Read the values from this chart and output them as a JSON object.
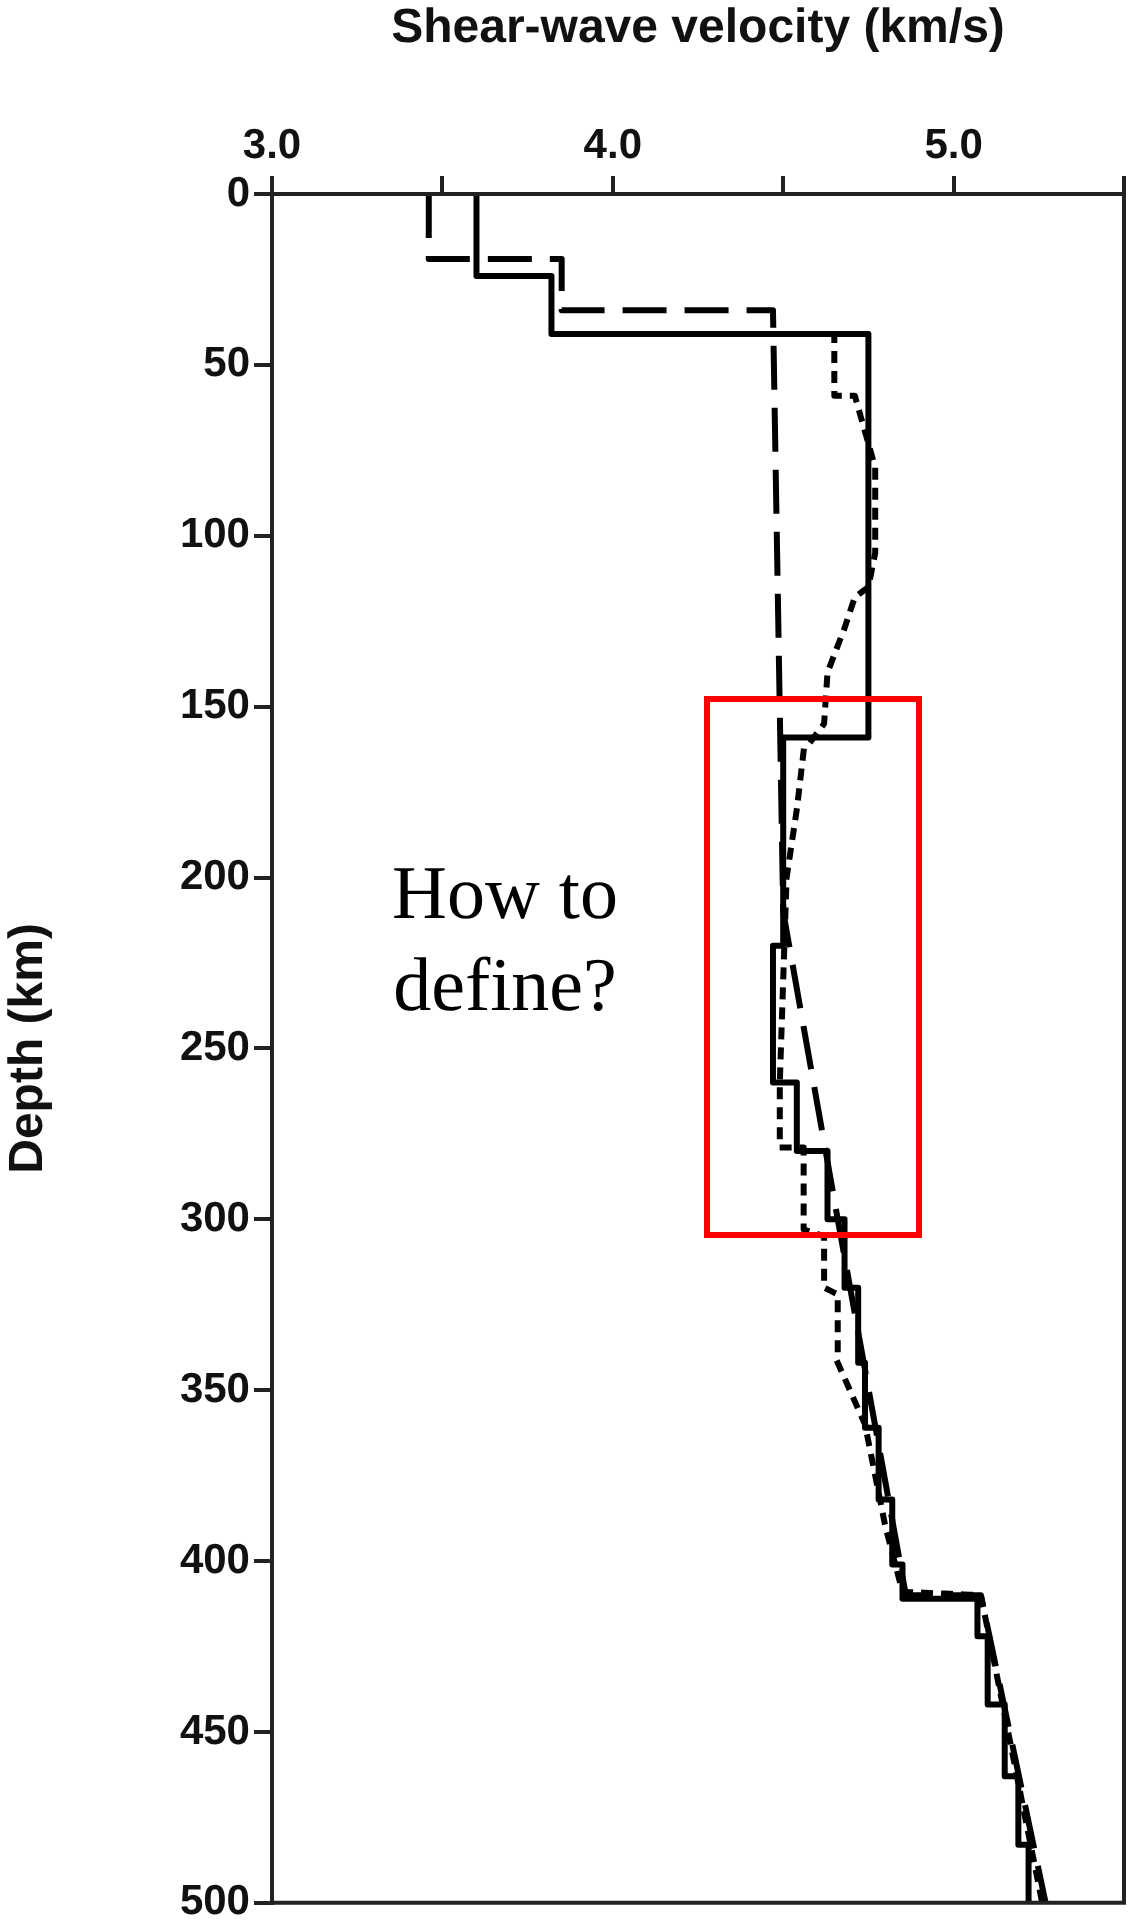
{
  "chart_data": {
    "type": "line",
    "xlabel": "Shear-wave velocity (km/s)",
    "ylabel": "Depth (km)",
    "xlim": [
      3.0,
      5.5
    ],
    "xticks": [
      {
        "value": 3,
        "label": "3.0"
      },
      {
        "value": 3.5,
        "label": null
      },
      {
        "value": 4,
        "label": "4.0"
      },
      {
        "value": 4.5,
        "label": null
      },
      {
        "value": 5,
        "label": "5.0"
      },
      {
        "value": 5.5,
        "label": null
      }
    ],
    "ylim": [
      500,
      0
    ],
    "yticks": [
      0,
      50,
      100,
      150,
      200,
      250,
      300,
      350,
      400,
      450,
      500
    ],
    "marker": "none",
    "series": [
      {
        "color": "#000000",
        "line_style": "solid",
        "x": [
          3.6,
          3.6,
          3.82,
          3.82,
          4.75,
          4.75,
          4.5,
          4.5,
          4.47,
          4.47,
          4.54,
          4.54,
          4.63,
          4.63,
          4.68,
          4.68,
          4.72,
          4.72,
          4.74,
          4.74,
          4.78,
          4.78,
          4.82,
          4.82,
          4.85,
          4.85,
          5.07,
          5.07,
          5.1,
          5.1,
          5.15,
          5.15,
          5.19,
          5.19,
          5.22,
          5.22
        ],
        "values": [
          0,
          24,
          24,
          41,
          41,
          159,
          159,
          220,
          220,
          260,
          260,
          280,
          280,
          300,
          300,
          320,
          320,
          342,
          342,
          361,
          361,
          382,
          382,
          401,
          401,
          411,
          411,
          422,
          422,
          442,
          442,
          463,
          463,
          483,
          483,
          500
        ]
      },
      {
        "color": "#000000",
        "line_style": "dashed",
        "x": [
          3.46,
          3.46,
          3.85,
          3.85,
          4.47,
          4.5,
          4.66,
          4.86,
          5.08,
          5.27
        ],
        "values": [
          0,
          19,
          19,
          34,
          34,
          210,
          300,
          410,
          410,
          500
        ]
      },
      {
        "color": "#000000",
        "line_style": "dotted",
        "x": [
          4.65,
          4.65,
          4.71,
          4.77,
          4.77,
          4.75,
          4.71,
          4.68,
          4.63,
          4.62,
          4.56,
          4.54,
          4.51,
          4.5,
          4.49,
          4.49,
          4.56,
          4.56,
          4.62,
          4.62,
          4.66,
          4.66,
          4.74,
          4.8,
          4.85,
          5.08,
          5.14,
          5.2,
          5.26
        ],
        "values": [
          41,
          59,
          59,
          80,
          105,
          115,
          118,
          127,
          140,
          155,
          163,
          180,
          200,
          230,
          260,
          279,
          279,
          303,
          305,
          320,
          322,
          342,
          360,
          390,
          409,
          410,
          440,
          470,
          500
        ]
      }
    ],
    "annotations": [
      "How to define?"
    ]
  }
}
